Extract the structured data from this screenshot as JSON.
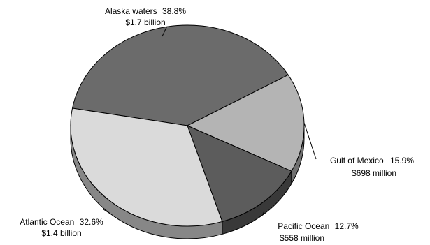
{
  "chart_data": {
    "type": "pie",
    "three_d": true,
    "slices": [
      {
        "name": "Alaska waters",
        "percent": 38.8,
        "percent_label": "38.8%",
        "value_label": "$1.7 billion",
        "color": "#6b6b6b"
      },
      {
        "name": "Gulf of Mexico",
        "percent": 15.9,
        "percent_label": "15.9%",
        "value_label": "$698 million",
        "color": "#b4b4b4"
      },
      {
        "name": "Pacific Ocean",
        "percent": 12.7,
        "percent_label": "12.7%",
        "value_label": "$558 million",
        "color": "#5c5c5c"
      },
      {
        "name": "Atlantic Ocean",
        "percent": 32.6,
        "percent_label": "32.6%",
        "value_label": "$1.4 billion",
        "color": "#dadada"
      }
    ]
  }
}
